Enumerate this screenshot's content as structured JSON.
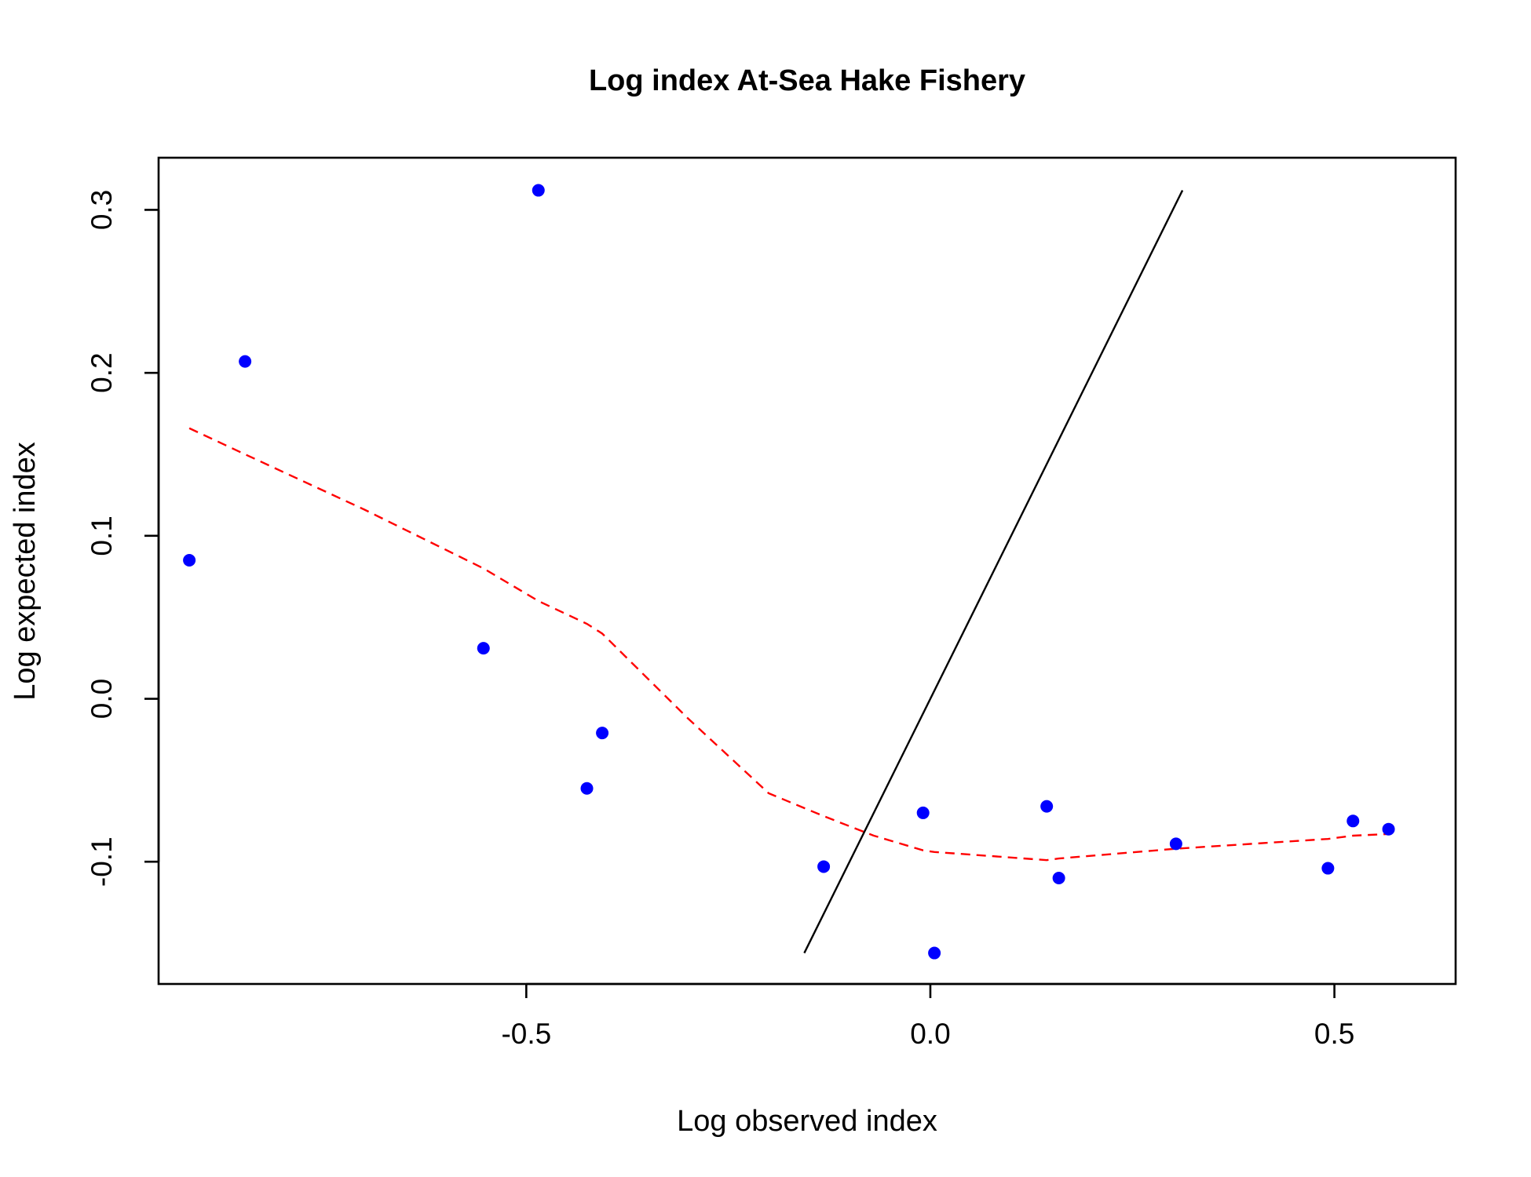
{
  "chart_data": {
    "type": "scatter",
    "title": "Log index At-Sea Hake Fishery",
    "xlabel": "Log observed index",
    "ylabel": "Log expected index",
    "xlim": [
      -0.955,
      0.65
    ],
    "ylim": [
      -0.175,
      0.332
    ],
    "xticks": [
      -0.5,
      0.0,
      0.5
    ],
    "xtick_labels": [
      "-0.5",
      "0.0",
      "0.5"
    ],
    "yticks": [
      -0.1,
      0.0,
      0.1,
      0.2,
      0.3
    ],
    "ytick_labels": [
      "-0.1",
      "0.0",
      "0.1",
      "0.2",
      "0.3"
    ],
    "grid": false,
    "colors": {
      "points": "#0000ff",
      "smoother": "#ff0000",
      "identity": "#000000",
      "frame": "#000000"
    },
    "series": [
      {
        "type": "scatter",
        "x": [
          -0.917,
          -0.848,
          -0.553,
          -0.485,
          -0.425,
          -0.406,
          -0.132,
          -0.009,
          0.005,
          0.144,
          0.159,
          0.304,
          0.492,
          0.523,
          0.567
        ],
        "y": [
          0.085,
          0.207,
          0.031,
          0.312,
          -0.055,
          -0.021,
          -0.103,
          -0.07,
          -0.156,
          -0.066,
          -0.11,
          -0.089,
          -0.104,
          -0.075,
          -0.08
        ]
      },
      {
        "type": "line",
        "style": "dashed",
        "x": [
          -0.917,
          -0.848,
          -0.7,
          -0.553,
          -0.485,
          -0.425,
          -0.406,
          -0.3,
          -0.2,
          -0.132,
          -0.07,
          -0.009,
          0.005,
          0.144,
          0.159,
          0.304,
          0.492,
          0.523,
          0.567
        ],
        "y": [
          0.166,
          0.15,
          0.116,
          0.08,
          0.06,
          0.046,
          0.04,
          -0.012,
          -0.058,
          -0.072,
          -0.084,
          -0.093,
          -0.094,
          -0.099,
          -0.098,
          -0.092,
          -0.086,
          -0.084,
          -0.083
        ]
      },
      {
        "type": "line",
        "style": "solid",
        "x": [
          -0.156,
          0.312
        ],
        "y": [
          -0.156,
          0.312
        ]
      }
    ]
  }
}
